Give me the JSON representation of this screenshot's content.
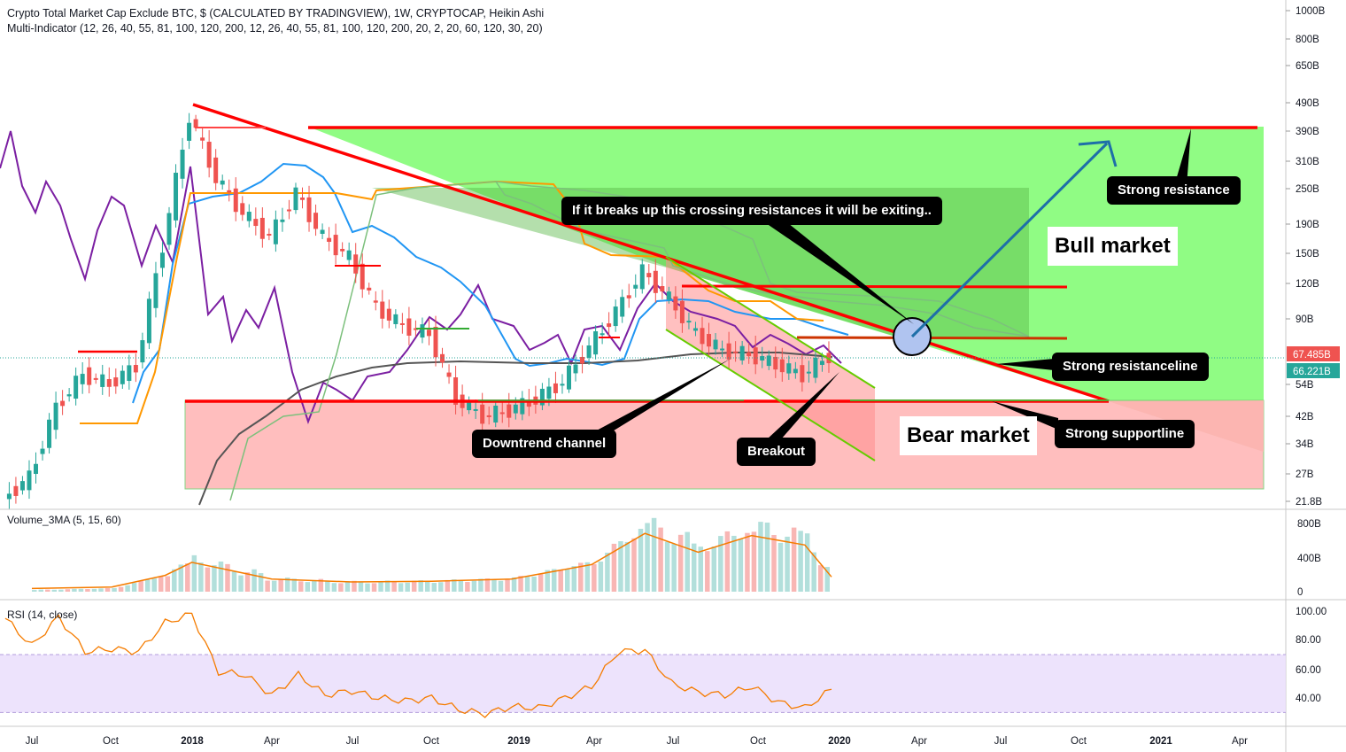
{
  "header": {
    "title": "Crypto Total Market Cap Exclude BTC, $ (CALCULATED BY TRADINGVIEW), 1W, CRYPTOCAP, Heikin Ashi",
    "indicator": "Multi-Indicator (12, 26, 40, 55, 81, 100, 120, 200, 12, 26, 40, 55, 81, 100, 120, 200, 20, 2, 20, 60, 120, 30, 20)"
  },
  "panes": {
    "volume_label": "Volume_3MA (5, 15, 60)",
    "rsi_label": "RSI (14, close)"
  },
  "price_axis": {
    "ticks": [
      "1000B",
      "800B",
      "650B",
      "490B",
      "390B",
      "310B",
      "250B",
      "190B",
      "150B",
      "120B",
      "90B",
      "54B",
      "42B",
      "34B",
      "27B",
      "21.8B"
    ],
    "last_price": "67.485B",
    "last_ma": "66.221B",
    "price_color": "#ef5350",
    "ma_color": "#26a69a"
  },
  "volume_axis": {
    "ticks": [
      "800B",
      "400B",
      "0"
    ]
  },
  "rsi_axis": {
    "ticks": [
      "100.00",
      "80.00",
      "60.00",
      "40.00"
    ]
  },
  "time_axis": {
    "ticks": [
      "Jul",
      "Oct",
      "2018",
      "Apr",
      "Jul",
      "Oct",
      "2019",
      "Apr",
      "Jul",
      "Oct",
      "2020",
      "Apr",
      "Jul",
      "Oct",
      "2021",
      "Apr"
    ]
  },
  "annotations": {
    "exciting": "If it breaks up this crossing resistances it will be exiting..",
    "strong_resistance": "Strong resistance",
    "bull_market": "Bull market",
    "strong_resistanceline": "Strong resistanceline",
    "bear_market": "Bear market",
    "strong_supportline": "Strong supportline",
    "downtrend_channel": "Downtrend channel",
    "breakout": "Breakout"
  },
  "colors": {
    "bull_candle": "#26a69a",
    "bear_candle": "#ef5350",
    "trend_line": "#ff0000",
    "bull_zone": "#7cfc6e",
    "bear_zone": "#ffb3b3",
    "rsi_line": "#f57c00",
    "rsi_band": "#e9dcfb",
    "purple_line": "#7b1fa2",
    "blue_line": "#2196f3",
    "orange_line": "#ff9800"
  },
  "chart_data": {
    "type": "candlestick",
    "title": "Crypto Total Market Cap Exclude BTC, $ (CALCULATED BY TRADINGVIEW), 1W, CRYPTOCAP, Heikin Ashi",
    "y_scale": "log",
    "ylim": [
      "21.8B",
      "1000B"
    ],
    "x_range": [
      "2017-06",
      "2021-05"
    ],
    "price_series": [
      {
        "date": "2017-06",
        "value": 22
      },
      {
        "date": "2017-07",
        "value": 26
      },
      {
        "date": "2017-08",
        "value": 45
      },
      {
        "date": "2017-09",
        "value": 58
      },
      {
        "date": "2017-10",
        "value": 54
      },
      {
        "date": "2017-11",
        "value": 62
      },
      {
        "date": "2017-12",
        "value": 160
      },
      {
        "date": "2018-01",
        "value": 440
      },
      {
        "date": "2018-02",
        "value": 270
      },
      {
        "date": "2018-03",
        "value": 205
      },
      {
        "date": "2018-04",
        "value": 170
      },
      {
        "date": "2018-05",
        "value": 240
      },
      {
        "date": "2018-06",
        "value": 170
      },
      {
        "date": "2018-07",
        "value": 145
      },
      {
        "date": "2018-08",
        "value": 98
      },
      {
        "date": "2018-09",
        "value": 85
      },
      {
        "date": "2018-10",
        "value": 80
      },
      {
        "date": "2018-11",
        "value": 48
      },
      {
        "date": "2018-12",
        "value": 42
      },
      {
        "date": "2019-01",
        "value": 44
      },
      {
        "date": "2019-02",
        "value": 48
      },
      {
        "date": "2019-03",
        "value": 55
      },
      {
        "date": "2019-04",
        "value": 72
      },
      {
        "date": "2019-05",
        "value": 95
      },
      {
        "date": "2019-06",
        "value": 130
      },
      {
        "date": "2019-07",
        "value": 105
      },
      {
        "date": "2019-08",
        "value": 80
      },
      {
        "date": "2019-09",
        "value": 70
      },
      {
        "date": "2019-10",
        "value": 68
      },
      {
        "date": "2019-11",
        "value": 63
      },
      {
        "date": "2019-12",
        "value": 58
      },
      {
        "date": "2020-01",
        "value": 67.485
      }
    ],
    "volume_series": [
      {
        "date": "2017-07",
        "value": 20
      },
      {
        "date": "2017-10",
        "value": 40
      },
      {
        "date": "2017-12",
        "value": 200
      },
      {
        "date": "2018-01",
        "value": 380
      },
      {
        "date": "2018-04",
        "value": 150
      },
      {
        "date": "2018-07",
        "value": 110
      },
      {
        "date": "2018-10",
        "value": 120
      },
      {
        "date": "2019-01",
        "value": 150
      },
      {
        "date": "2019-04",
        "value": 350
      },
      {
        "date": "2019-06",
        "value": 780
      },
      {
        "date": "2019-08",
        "value": 520
      },
      {
        "date": "2019-10",
        "value": 750
      },
      {
        "date": "2019-12",
        "value": 620
      },
      {
        "date": "2020-01",
        "value": 180
      }
    ],
    "rsi_series": [
      {
        "date": "2017-06",
        "value": 95
      },
      {
        "date": "2017-07",
        "value": 76
      },
      {
        "date": "2017-08",
        "value": 96
      },
      {
        "date": "2017-09",
        "value": 72
      },
      {
        "date": "2017-10",
        "value": 74
      },
      {
        "date": "2017-11",
        "value": 72
      },
      {
        "date": "2017-12",
        "value": 92
      },
      {
        "date": "2018-01",
        "value": 98
      },
      {
        "date": "2018-02",
        "value": 58
      },
      {
        "date": "2018-03",
        "value": 56
      },
      {
        "date": "2018-04",
        "value": 42
      },
      {
        "date": "2018-05",
        "value": 56
      },
      {
        "date": "2018-06",
        "value": 42
      },
      {
        "date": "2018-07",
        "value": 45
      },
      {
        "date": "2018-08",
        "value": 40
      },
      {
        "date": "2018-09",
        "value": 38
      },
      {
        "date": "2018-10",
        "value": 40
      },
      {
        "date": "2018-11",
        "value": 32
      },
      {
        "date": "2018-12",
        "value": 29
      },
      {
        "date": "2019-01",
        "value": 34
      },
      {
        "date": "2019-02",
        "value": 33
      },
      {
        "date": "2019-03",
        "value": 40
      },
      {
        "date": "2019-04",
        "value": 48
      },
      {
        "date": "2019-05",
        "value": 72
      },
      {
        "date": "2019-06",
        "value": 73
      },
      {
        "date": "2019-07",
        "value": 50
      },
      {
        "date": "2019-08",
        "value": 44
      },
      {
        "date": "2019-09",
        "value": 42
      },
      {
        "date": "2019-10",
        "value": 48
      },
      {
        "date": "2019-11",
        "value": 37
      },
      {
        "date": "2019-12",
        "value": 33
      },
      {
        "date": "2020-01",
        "value": 46
      }
    ],
    "rsi_band": [
      30,
      70
    ],
    "ylabel": "",
    "xlabel": ""
  }
}
